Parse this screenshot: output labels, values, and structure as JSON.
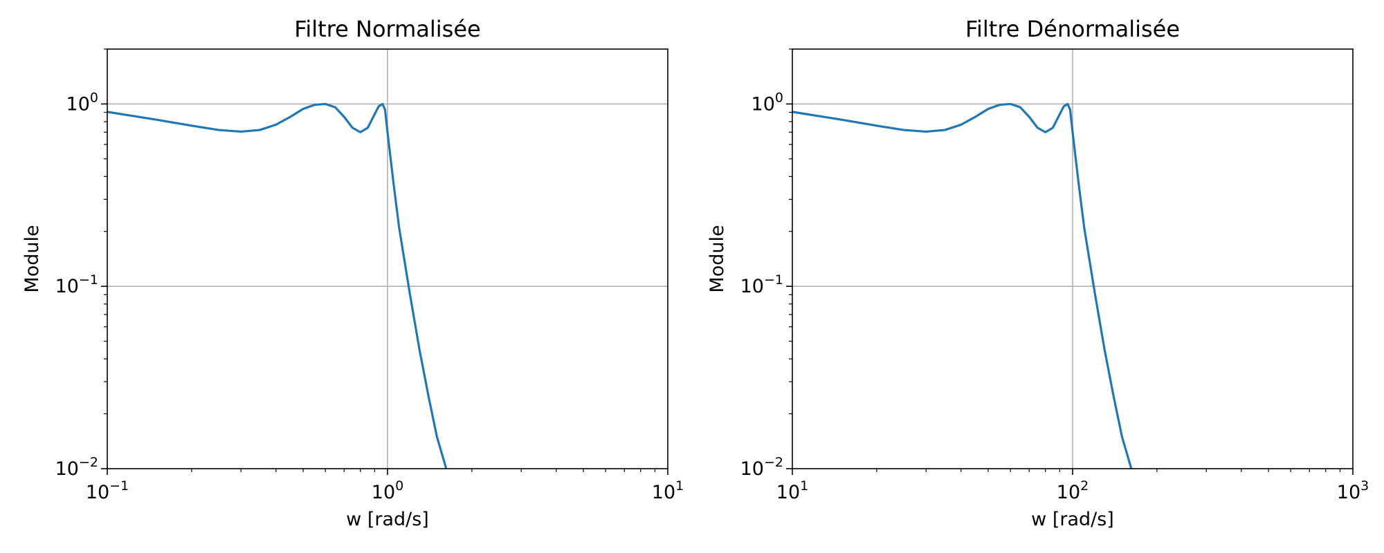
{
  "chart_data": [
    {
      "type": "line",
      "title": "Filtre Normalisée",
      "xlabel": "w [rad/s]",
      "ylabel": "Module",
      "xscale": "log",
      "yscale": "log",
      "xlim": [
        0.1,
        10
      ],
      "ylim": [
        0.01,
        2
      ],
      "grid": "major",
      "x_ticks": [
        {
          "base": "10",
          "exp": "−1"
        },
        {
          "base": "10",
          "exp": "0"
        },
        {
          "base": "10",
          "exp": "1"
        }
      ],
      "y_ticks": [
        {
          "base": "10",
          "exp": "−2"
        },
        {
          "base": "10",
          "exp": "−1"
        },
        {
          "base": "10",
          "exp": "0"
        }
      ],
      "series": [
        {
          "color": "#1f77b4",
          "x": [
            0.1,
            0.15,
            0.2,
            0.25,
            0.3,
            0.35,
            0.4,
            0.45,
            0.5,
            0.55,
            0.6,
            0.65,
            0.7,
            0.75,
            0.8,
            0.85,
            0.9,
            0.93,
            0.96,
            0.98,
            1.0,
            1.05,
            1.1,
            1.2,
            1.3,
            1.4,
            1.5,
            1.62
          ],
          "y": [
            0.905,
            0.82,
            0.76,
            0.72,
            0.705,
            0.72,
            0.77,
            0.85,
            0.94,
            0.99,
            1.0,
            0.96,
            0.85,
            0.74,
            0.7,
            0.74,
            0.88,
            0.97,
            1.0,
            0.93,
            0.7,
            0.37,
            0.21,
            0.092,
            0.045,
            0.025,
            0.015,
            0.01
          ]
        }
      ]
    },
    {
      "type": "line",
      "title": "Filtre Dénormalisée",
      "xlabel": "w [rad/s]",
      "ylabel": "Module",
      "xscale": "log",
      "yscale": "log",
      "xlim": [
        10,
        1000
      ],
      "ylim": [
        0.01,
        2
      ],
      "grid": "major",
      "x_ticks": [
        {
          "base": "10",
          "exp": "1"
        },
        {
          "base": "10",
          "exp": "2"
        },
        {
          "base": "10",
          "exp": "3"
        }
      ],
      "y_ticks": [
        {
          "base": "10",
          "exp": "−2"
        },
        {
          "base": "10",
          "exp": "−1"
        },
        {
          "base": "10",
          "exp": "0"
        }
      ],
      "series": [
        {
          "color": "#1f77b4",
          "x": [
            10,
            15,
            20,
            25,
            30,
            35,
            40,
            45,
            50,
            55,
            60,
            65,
            70,
            75,
            80,
            85,
            90,
            93,
            96,
            98,
            100,
            105,
            110,
            120,
            130,
            140,
            150,
            162
          ],
          "y": [
            0.905,
            0.82,
            0.76,
            0.72,
            0.705,
            0.72,
            0.77,
            0.85,
            0.94,
            0.99,
            1.0,
            0.96,
            0.85,
            0.74,
            0.7,
            0.74,
            0.88,
            0.97,
            1.0,
            0.93,
            0.7,
            0.37,
            0.21,
            0.092,
            0.045,
            0.025,
            0.015,
            0.01
          ]
        }
      ]
    }
  ]
}
